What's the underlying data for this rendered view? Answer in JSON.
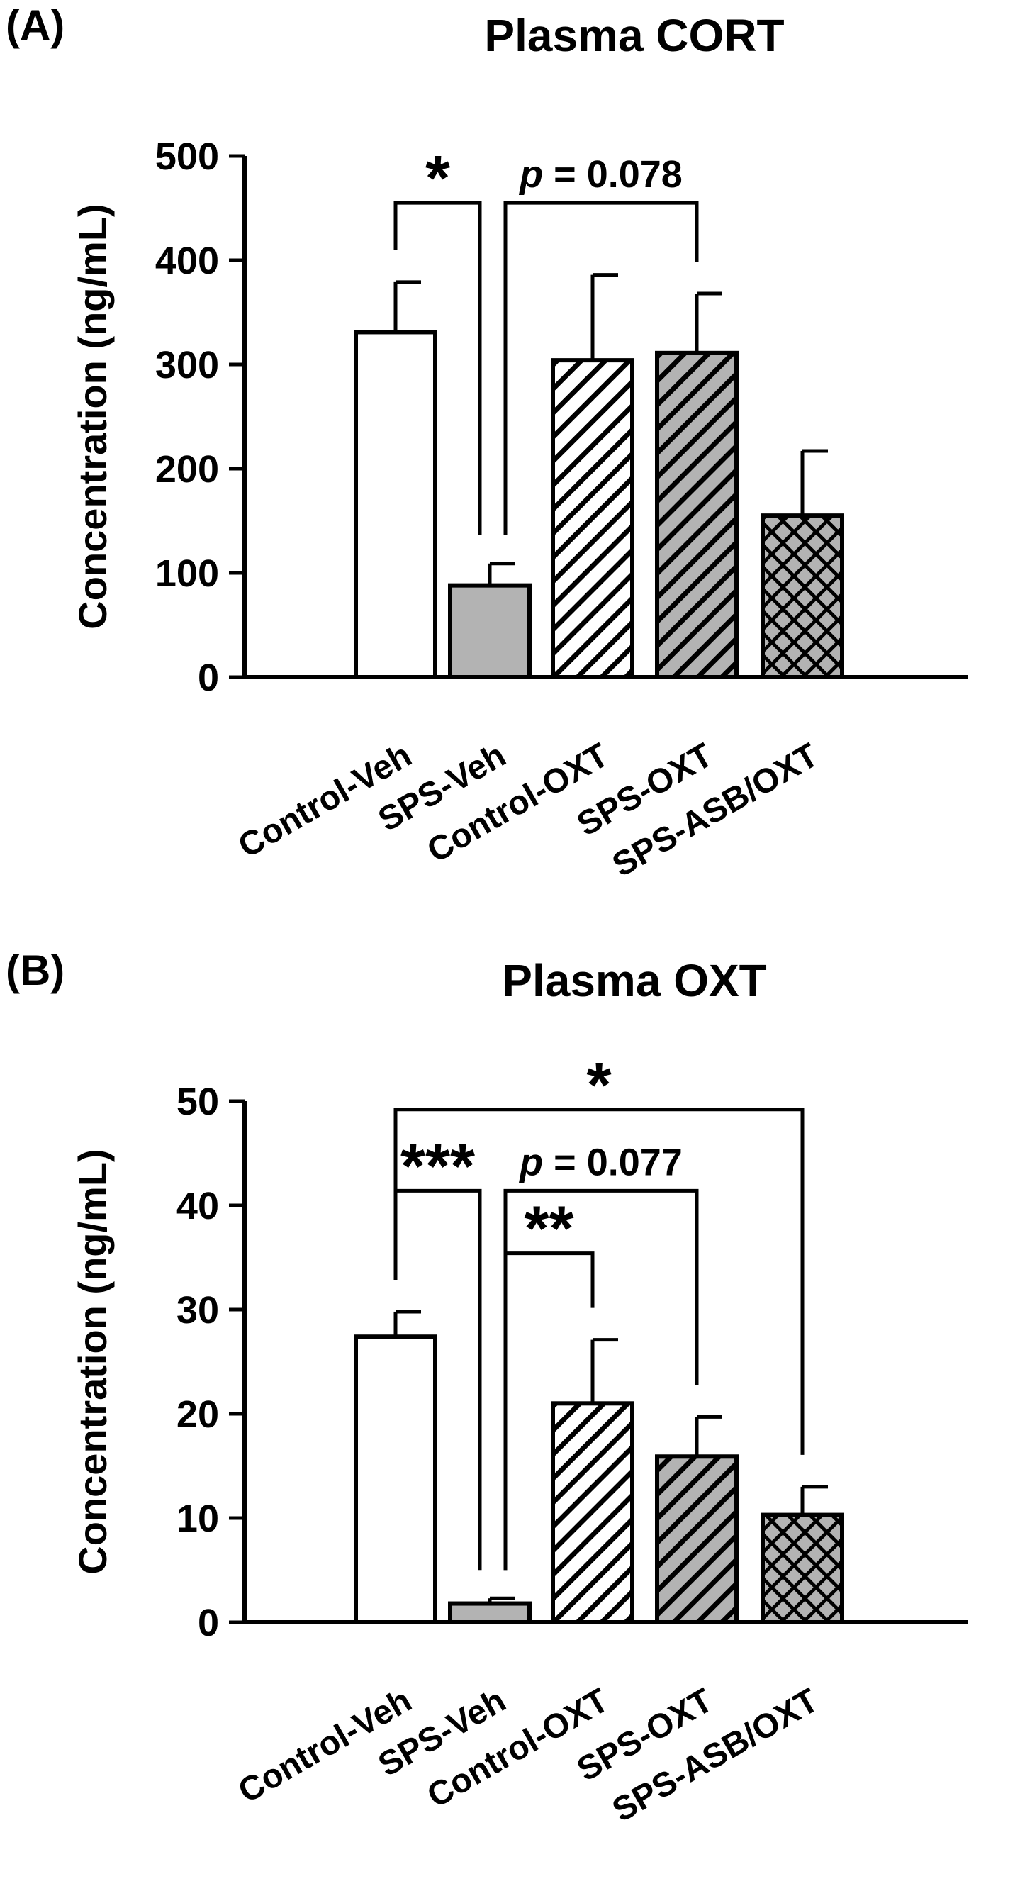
{
  "chart_data": [
    {
      "type": "bar",
      "panel_label": "(A)",
      "title": "Plasma CORT",
      "ylabel": "Concentration (ng/mL)",
      "xlabel": "",
      "ylim": [
        0,
        500
      ],
      "yticks": [
        "0",
        "100",
        "200",
        "300",
        "400",
        "500"
      ],
      "categories": [
        "Control-Veh",
        "SPS-Veh",
        "Control-OXT",
        "SPS-OXT",
        "SPS-ASB/OXT"
      ],
      "values": [
        331,
        88,
        304,
        311,
        155
      ],
      "errors": [
        48,
        21,
        82,
        57,
        62
      ],
      "annotations": [
        {
          "label": "*",
          "italic_prefix": "",
          "from": 0,
          "to": 1,
          "level": 455
        },
        {
          "label": " = 0.078",
          "italic_prefix": "p",
          "from": 1,
          "to": 3,
          "level": 455
        }
      ]
    },
    {
      "type": "bar",
      "panel_label": "(B)",
      "title": "Plasma OXT",
      "ylabel": "Concentration (ng/mL)",
      "xlabel": "",
      "ylim": [
        0,
        50
      ],
      "yticks": [
        "0",
        "10",
        "20",
        "30",
        "40",
        "50"
      ],
      "categories": [
        "Control-Veh",
        "SPS-Veh",
        "Control-OXT",
        "SPS-OXT",
        "SPS-ASB/OXT"
      ],
      "values": [
        27.4,
        1.8,
        21.0,
        15.9,
        10.3
      ],
      "errors": [
        2.4,
        0.5,
        6.1,
        3.8,
        2.7
      ],
      "annotations": [
        {
          "label": "*",
          "italic_prefix": "",
          "from": 0,
          "to": 4,
          "level": 49.2
        },
        {
          "label": "***",
          "italic_prefix": "",
          "from": 0,
          "to": 1,
          "level": 41.4
        },
        {
          "label": " = 0.077",
          "italic_prefix": "p",
          "from": 1,
          "to": 3,
          "level": 41.4
        },
        {
          "label": "**",
          "italic_prefix": "",
          "from": 1,
          "to": 2,
          "level": 35.4
        }
      ]
    }
  ],
  "colors": {
    "axis": "#000000",
    "fill_white": "#ffffff",
    "fill_gray": "#b3b3b3",
    "stroke": "#000000"
  },
  "patterns": [
    "solid-white",
    "solid-gray",
    "hatch-white",
    "hatch-gray",
    "crosshatch-gray"
  ]
}
